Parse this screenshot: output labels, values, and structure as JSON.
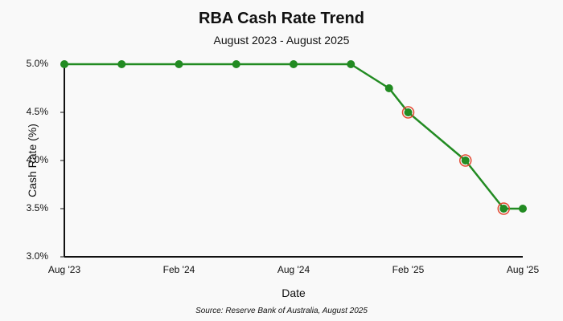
{
  "chart_data": {
    "type": "line",
    "title": "RBA Cash Rate Trend",
    "subtitle": "August 2023 - August 2025",
    "xlabel": "Date",
    "ylabel": "Cash Rate (%)",
    "source": "Source: Reserve Bank of Australia, August 2025",
    "x_ticks": [
      "Aug '23",
      "Feb '24",
      "Aug '24",
      "Feb '25",
      "Aug '25"
    ],
    "x_tick_dates": [
      "2023-08",
      "2024-02",
      "2024-08",
      "2025-02",
      "2025-08"
    ],
    "y_ticks": [
      "3.0%",
      "3.5%",
      "4.0%",
      "4.5%",
      "5.0%"
    ],
    "y_tick_values": [
      3.0,
      3.5,
      4.0,
      4.5,
      5.0
    ],
    "ylim": [
      3.0,
      5.0
    ],
    "xlim": [
      "2023-08",
      "2025-08"
    ],
    "grid": false,
    "line_color": "#228B22",
    "highlight_color": "#e34a33",
    "series": [
      {
        "points": [
          {
            "x": "2023-08",
            "y": 5.0
          },
          {
            "x": "2023-11",
            "y": 5.0
          },
          {
            "x": "2024-02",
            "y": 5.0
          },
          {
            "x": "2024-05",
            "y": 5.0
          },
          {
            "x": "2024-08",
            "y": 5.0
          },
          {
            "x": "2024-11",
            "y": 5.0
          },
          {
            "x": "2025-01",
            "y": 4.75
          },
          {
            "x": "2025-02",
            "y": 4.5,
            "highlight": true
          },
          {
            "x": "2025-05",
            "y": 4.0,
            "highlight": true
          },
          {
            "x": "2025-07",
            "y": 3.5,
            "highlight": true
          },
          {
            "x": "2025-08",
            "y": 3.5
          }
        ]
      }
    ]
  }
}
